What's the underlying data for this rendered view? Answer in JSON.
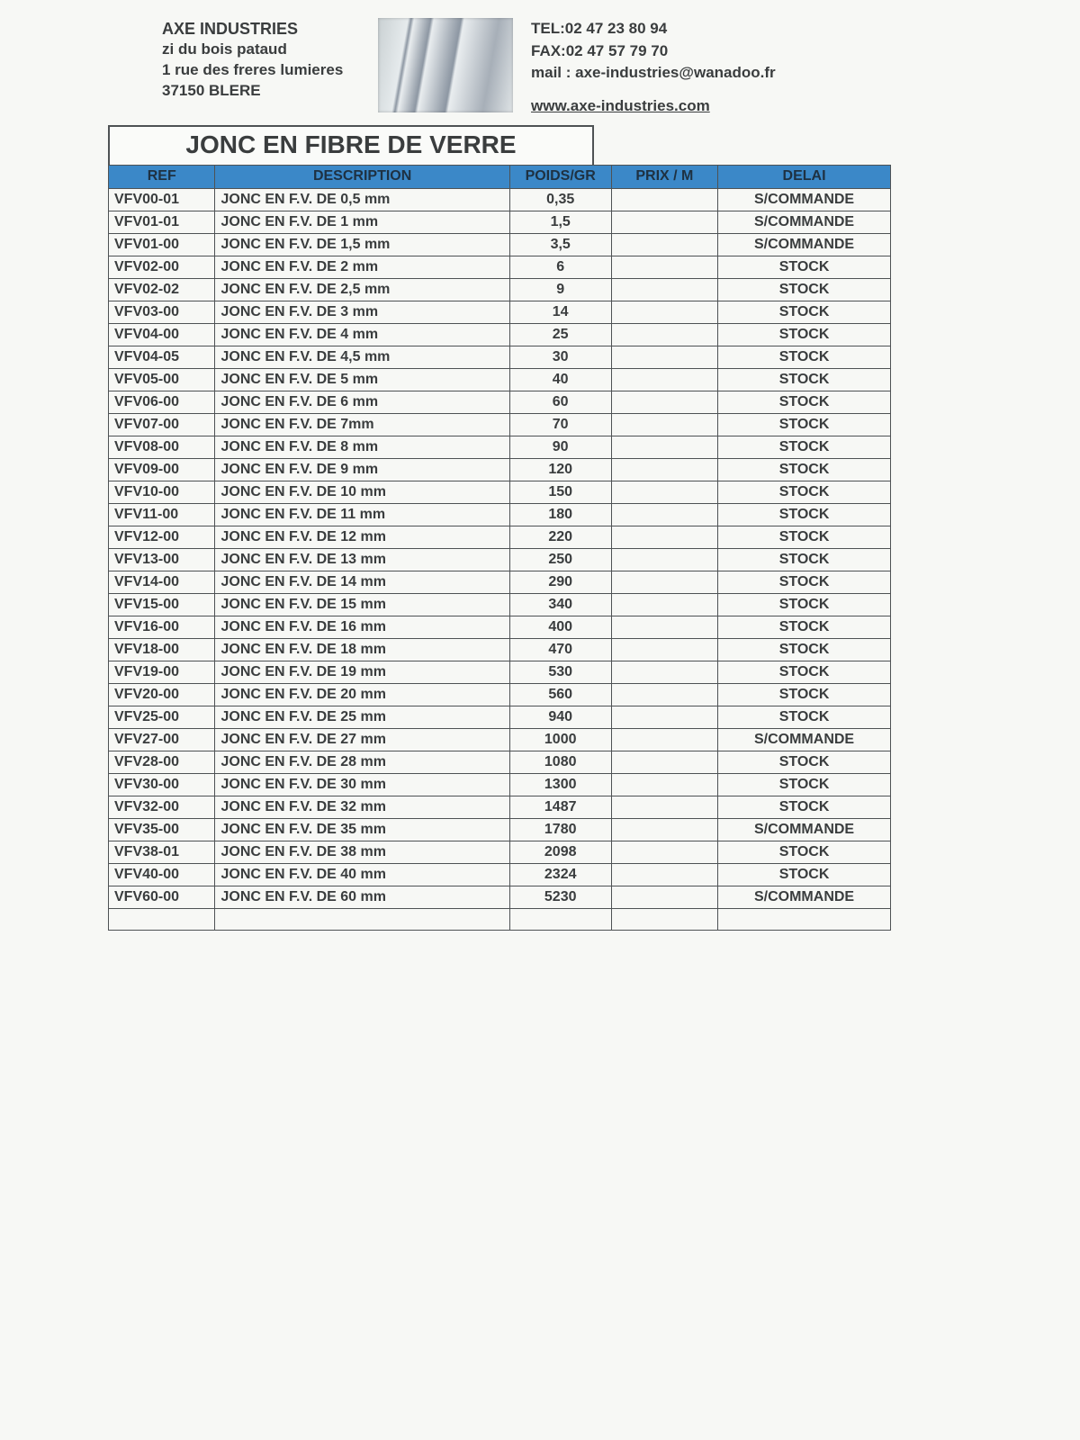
{
  "header": {
    "company_name": "AXE INDUSTRIES",
    "addr1": "zi du bois pataud",
    "addr2": "1 rue des freres lumieres",
    "addr3": "37150 BLERE",
    "tel": "TEL:02 47 23 80 94",
    "fax": "FAX:02 47 57 79 70",
    "mail": "mail : axe-industries@wanadoo.fr",
    "web": "www.axe-industries.com"
  },
  "title": "JONC EN FIBRE DE VERRE",
  "columns": {
    "ref": "REF",
    "desc": "DESCRIPTION",
    "poids": "POIDS/GR",
    "prix": "PRIX / M",
    "delai": "DELAI"
  },
  "rows": [
    {
      "ref": "VFV00-01",
      "desc": "JONC EN F.V. DE 0,5 mm",
      "poids": "0,35",
      "prix": "",
      "delai": "S/COMMANDE"
    },
    {
      "ref": "VFV01-01",
      "desc": "JONC EN F.V. DE 1 mm",
      "poids": "1,5",
      "prix": "",
      "delai": "S/COMMANDE"
    },
    {
      "ref": "VFV01-00",
      "desc": "JONC EN F.V. DE 1,5 mm",
      "poids": "3,5",
      "prix": "",
      "delai": "S/COMMANDE"
    },
    {
      "ref": "VFV02-00",
      "desc": "JONC EN F.V. DE 2 mm",
      "poids": "6",
      "prix": "",
      "delai": "STOCK"
    },
    {
      "ref": "VFV02-02",
      "desc": "JONC EN F.V. DE 2,5 mm",
      "poids": "9",
      "prix": "",
      "delai": "STOCK"
    },
    {
      "ref": "VFV03-00",
      "desc": "JONC EN F.V. DE 3 mm",
      "poids": "14",
      "prix": "",
      "delai": "STOCK"
    },
    {
      "ref": "VFV04-00",
      "desc": "JONC EN F.V. DE 4 mm",
      "poids": "25",
      "prix": "",
      "delai": "STOCK"
    },
    {
      "ref": "VFV04-05",
      "desc": "JONC EN F.V. DE 4,5 mm",
      "poids": "30",
      "prix": "",
      "delai": "STOCK"
    },
    {
      "ref": "VFV05-00",
      "desc": "JONC EN F.V. DE 5 mm",
      "poids": "40",
      "prix": "",
      "delai": "STOCK"
    },
    {
      "ref": "VFV06-00",
      "desc": "JONC EN F.V. DE 6 mm",
      "poids": "60",
      "prix": "",
      "delai": "STOCK"
    },
    {
      "ref": "VFV07-00",
      "desc": "JONC EN F.V. DE 7mm",
      "poids": "70",
      "prix": "",
      "delai": "STOCK"
    },
    {
      "ref": "VFV08-00",
      "desc": "JONC EN F.V. DE 8 mm",
      "poids": "90",
      "prix": "",
      "delai": "STOCK"
    },
    {
      "ref": "VFV09-00",
      "desc": "JONC EN F.V. DE 9 mm",
      "poids": "120",
      "prix": "",
      "delai": "STOCK"
    },
    {
      "ref": "VFV10-00",
      "desc": "JONC EN F.V. DE 10 mm",
      "poids": "150",
      "prix": "",
      "delai": "STOCK"
    },
    {
      "ref": "VFV11-00",
      "desc": "JONC EN F.V. DE 11 mm",
      "poids": "180",
      "prix": "",
      "delai": "STOCK"
    },
    {
      "ref": "VFV12-00",
      "desc": "JONC EN F.V. DE 12 mm",
      "poids": "220",
      "prix": "",
      "delai": "STOCK"
    },
    {
      "ref": "VFV13-00",
      "desc": "JONC EN F.V. DE 13 mm",
      "poids": "250",
      "prix": "",
      "delai": "STOCK"
    },
    {
      "ref": "VFV14-00",
      "desc": "JONC EN F.V. DE 14 mm",
      "poids": "290",
      "prix": "",
      "delai": "STOCK"
    },
    {
      "ref": "VFV15-00",
      "desc": "JONC EN F.V. DE 15 mm",
      "poids": "340",
      "prix": "",
      "delai": "STOCK"
    },
    {
      "ref": "VFV16-00",
      "desc": "JONC EN F.V. DE 16 mm",
      "poids": "400",
      "prix": "",
      "delai": "STOCK"
    },
    {
      "ref": "VFV18-00",
      "desc": "JONC EN F.V. DE 18 mm",
      "poids": "470",
      "prix": "",
      "delai": "STOCK"
    },
    {
      "ref": "VFV19-00",
      "desc": "JONC EN F.V. DE 19 mm",
      "poids": "530",
      "prix": "",
      "delai": "STOCK"
    },
    {
      "ref": "VFV20-00",
      "desc": "JONC EN F.V. DE 20 mm",
      "poids": "560",
      "prix": "",
      "delai": "STOCK"
    },
    {
      "ref": "VFV25-00",
      "desc": "JONC EN F.V. DE 25 mm",
      "poids": "940",
      "prix": "",
      "delai": "STOCK"
    },
    {
      "ref": "VFV27-00",
      "desc": "JONC EN F.V. DE 27 mm",
      "poids": "1000",
      "prix": "",
      "delai": "S/COMMANDE"
    },
    {
      "ref": "VFV28-00",
      "desc": "JONC EN F.V. DE 28 mm",
      "poids": "1080",
      "prix": "",
      "delai": "STOCK"
    },
    {
      "ref": "VFV30-00",
      "desc": "JONC EN F.V. DE 30 mm",
      "poids": "1300",
      "prix": "",
      "delai": "STOCK"
    },
    {
      "ref": "VFV32-00",
      "desc": "JONC EN F.V. DE 32 mm",
      "poids": "1487",
      "prix": "",
      "delai": "STOCK"
    },
    {
      "ref": "VFV35-00",
      "desc": "JONC EN F.V. DE 35 mm",
      "poids": "1780",
      "prix": "",
      "delai": "S/COMMANDE"
    },
    {
      "ref": "VFV38-01",
      "desc": "JONC EN F.V. DE 38 mm",
      "poids": "2098",
      "prix": "",
      "delai": "STOCK"
    },
    {
      "ref": "VFV40-00",
      "desc": "JONC EN F.V. DE 40 mm",
      "poids": "2324",
      "prix": "",
      "delai": "STOCK"
    },
    {
      "ref": "VFV60-00",
      "desc": "JONC EN F.V. DE 60 mm",
      "poids": "5230",
      "prix": "",
      "delai": "S/COMMANDE"
    },
    {
      "ref": "",
      "desc": "",
      "poids": "",
      "prix": "",
      "delai": ""
    }
  ],
  "style": {
    "header_bg": "#3b88c8",
    "border_color": "#4e5254",
    "page_bg": "#f7f8f5",
    "text_color": "#3a3d3e",
    "title_fontsize": 28,
    "cell_fontsize": 16
  }
}
